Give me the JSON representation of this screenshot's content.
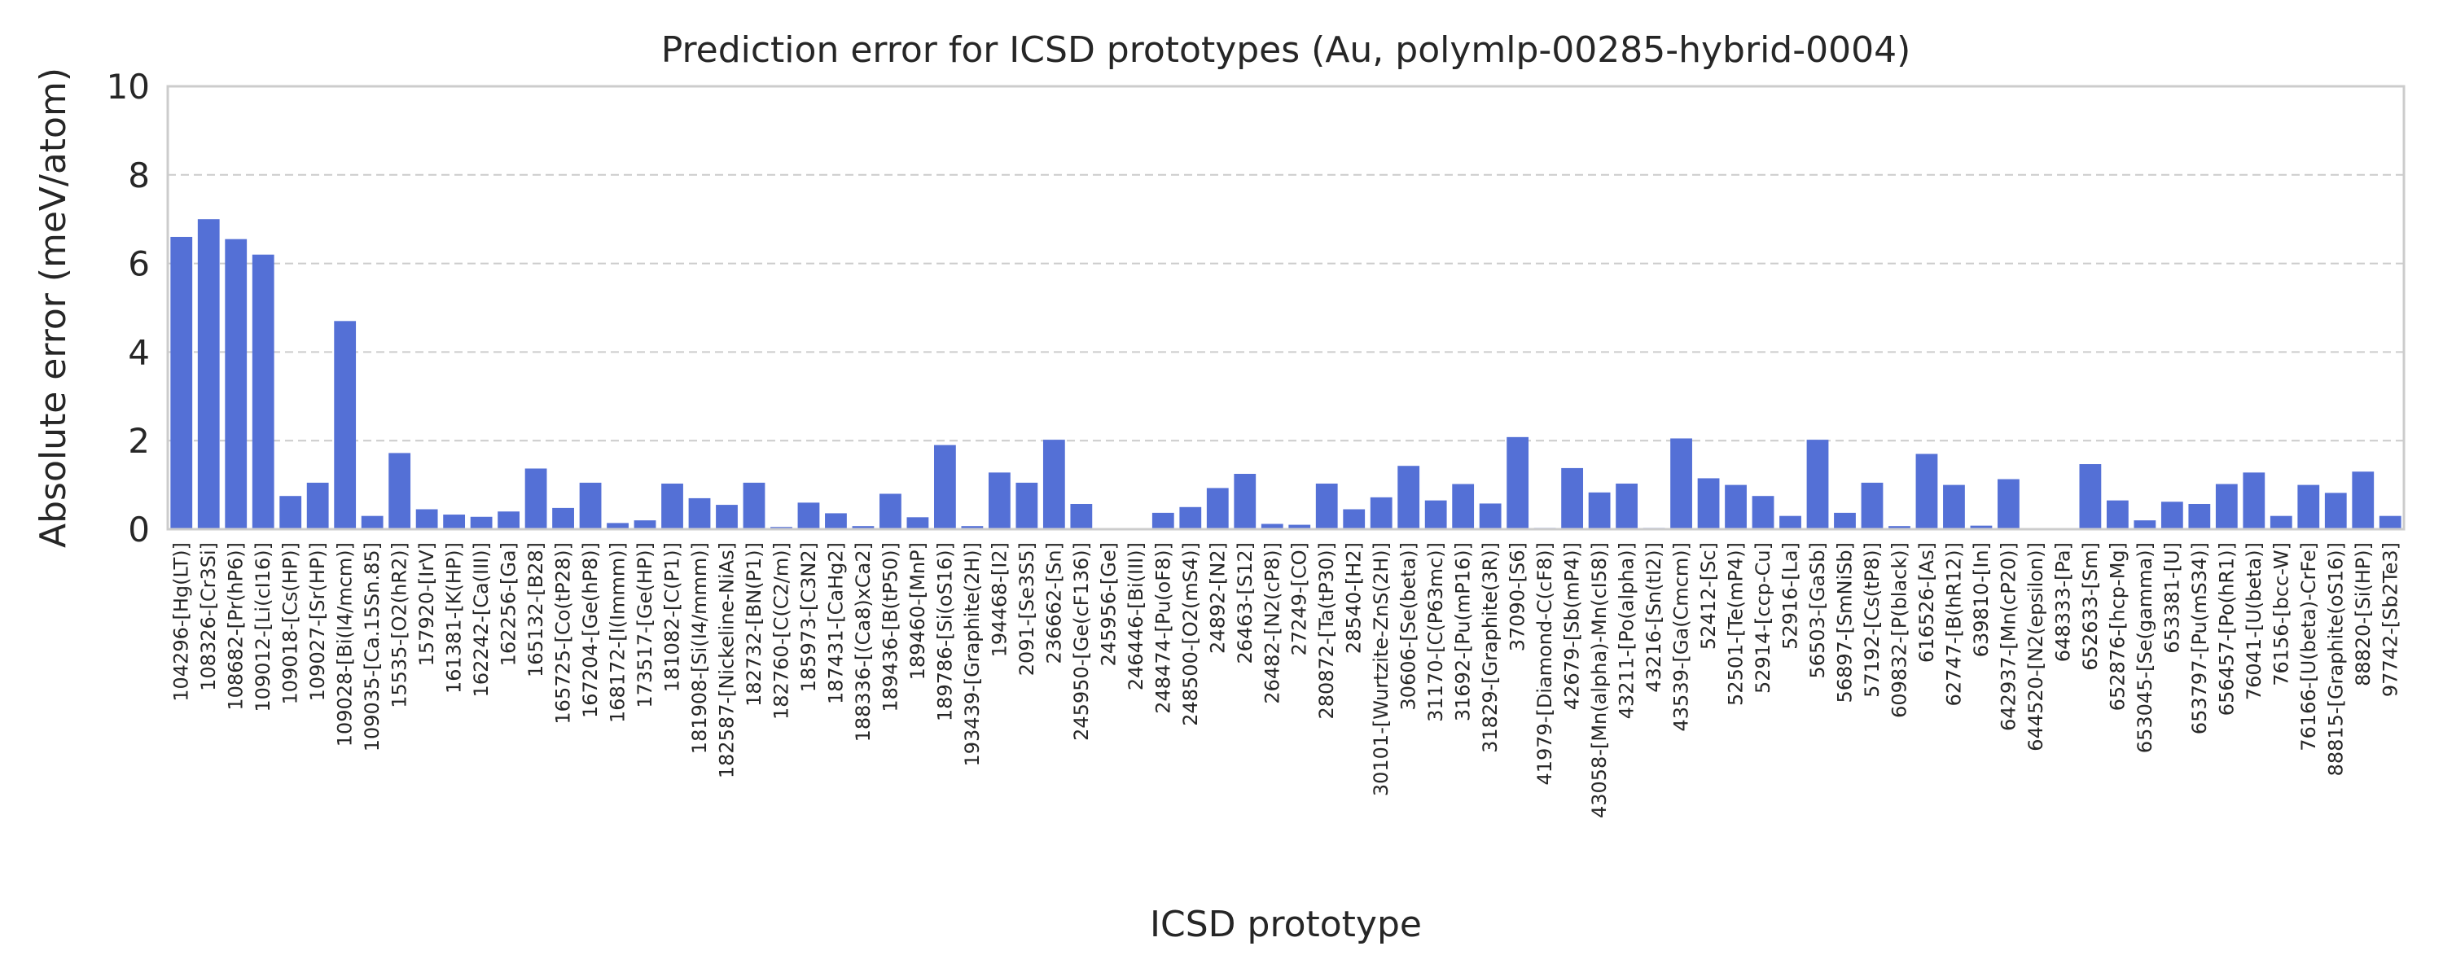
{
  "chart_data": {
    "type": "bar",
    "title": "Prediction error for ICSD prototypes (Au, polymlp-00285-hybrid-0004)",
    "xlabel": "ICSD prototype",
    "ylabel": "Absolute error (meV/atom)",
    "ylim": [
      0,
      10
    ],
    "yticks": [
      "0",
      "2",
      "4",
      "6",
      "8",
      "10"
    ],
    "grid": "y",
    "bar_color": "#5470d6",
    "categories": [
      "104296-[Hg(LT)]",
      "108326-[Cr3Si]",
      "108682-[Pr(hP6)]",
      "109012-[Li(cI16)]",
      "109018-[Cs(HP)]",
      "109027-[Sr(HP)]",
      "109028-[Bi(I4/mcm)]",
      "109035-[Ca.15Sn.85]",
      "15535-[O2(hR2)]",
      "157920-[IrV]",
      "161381-[K(HP)]",
      "162242-[Ca(III)]",
      "162256-[Ga]",
      "165132-[B28]",
      "165725-[Co(tP28)]",
      "167204-[Ge(hP8)]",
      "168172-[I(Immm)]",
      "173517-[Ge(HP)]",
      "181082-[C(P1)]",
      "181908-[Si(I4/mmm)]",
      "182587-[Nickeline-NiAs]",
      "182732-[BN(P1)]",
      "182760-[C(C2/m)]",
      "185973-[C3N2]",
      "187431-[CaHg2]",
      "188336-[(Ca8)xCa2]",
      "189436-[B(tP50)]",
      "189460-[MnP]",
      "189786-[Si(oS16)]",
      "193439-[Graphite(2H)]",
      "194468-[I2]",
      "2091-[Se3S5]",
      "236662-[Sn]",
      "245950-[Ge(cF136)]",
      "245956-[Ge]",
      "246446-[Bi(III)]",
      "248474-[Pu(oF8)]",
      "248500-[O2(mS4)]",
      "24892-[N2]",
      "26463-[S12]",
      "26482-[N2(cP8)]",
      "27249-[CO]",
      "280872-[Ta(tP30)]",
      "28540-[H2]",
      "30101-[Wurtzite-ZnS(2H)]",
      "30606-[Se(beta)]",
      "31170-[C(P63mc)]",
      "31692-[Pu(mP16)]",
      "31829-[Graphite(3R)]",
      "37090-[S6]",
      "41979-[Diamond-C(cF8)]",
      "42679-[Sb(mP4)]",
      "43058-[Mn(alpha)-Mn(cI58)]",
      "43211-[Po(alpha)]",
      "43216-[Sn(tI2)]",
      "43539-[Ga(Cmcm)]",
      "52412-[Sc]",
      "52501-[Te(mP4)]",
      "52914-[ccp-Cu]",
      "52916-[La]",
      "56503-[GaSb]",
      "56897-[SmNiSb]",
      "57192-[Cs(tP8)]",
      "609832-[P(black)]",
      "616526-[As]",
      "62747-[B(hR12)]",
      "639810-[In]",
      "642937-[Mn(cP20)]",
      "644520-[N2(epsilon)]",
      "648333-[Pa]",
      "652633-[Sm]",
      "652876-[hcp-Mg]",
      "653045-[Se(gamma)]",
      "653381-[U]",
      "653797-[Pu(mS34)]",
      "656457-[Po(hR1)]",
      "76041-[U(beta)]",
      "76156-[bcc-W]",
      "76166-[U(beta)-CrFe]",
      "88815-[Graphite(oS16)]",
      "88820-[Si(HP)]",
      "97742-[Sb2Te3]"
    ],
    "values": [
      6.6,
      7.0,
      6.55,
      6.2,
      0.75,
      1.05,
      4.7,
      0.3,
      1.72,
      0.45,
      0.33,
      0.28,
      0.4,
      1.37,
      0.48,
      1.05,
      0.14,
      0.2,
      1.03,
      0.7,
      0.55,
      1.05,
      0.05,
      0.6,
      0.36,
      0.07,
      0.8,
      0.27,
      1.9,
      0.07,
      1.28,
      1.05,
      2.02,
      0.57,
      0.0,
      0.0,
      0.37,
      0.5,
      0.93,
      1.25,
      0.12,
      0.1,
      1.03,
      0.45,
      0.72,
      1.43,
      0.65,
      1.02,
      0.58,
      2.08,
      0.03,
      1.38,
      0.83,
      1.03,
      0.03,
      2.05,
      1.15,
      1.0,
      0.75,
      0.3,
      2.02,
      0.37,
      1.05,
      0.07,
      1.7,
      1.0,
      0.08,
      1.13,
      0.02,
      0.0,
      1.47,
      0.65,
      0.2,
      0.62,
      0.57,
      1.02,
      1.28,
      0.3,
      1.0,
      0.82,
      1.3,
      0.3
    ]
  }
}
